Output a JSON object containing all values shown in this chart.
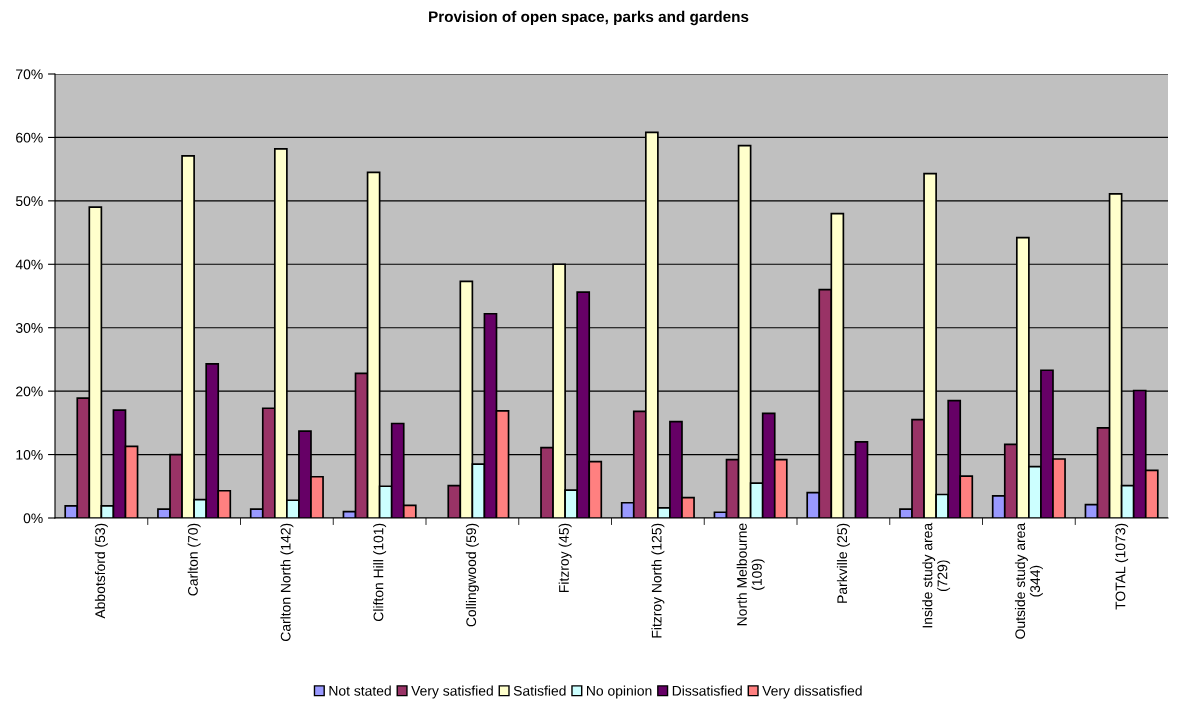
{
  "chart_data": {
    "type": "bar",
    "title": "Provision of open space, parks and gardens",
    "categories": [
      "Abbotsford (53)",
      "Carlton (70)",
      "Carlton North (142)",
      "Clifton Hill (101)",
      "Collingwood (59)",
      "Fitzroy (45)",
      "Fitzroy North (125)",
      "North Melbourne\n(109)",
      "Parkville (25)",
      "Inside study area\n(729)",
      "Outside study area\n(344)",
      "TOTAL (1073)"
    ],
    "series": [
      {
        "name": "Not stated",
        "color": "#9999ff",
        "values": [
          1.9,
          1.4,
          1.4,
          1.0,
          null,
          null,
          2.4,
          0.9,
          4.0,
          1.4,
          3.5,
          2.1
        ]
      },
      {
        "name": "Very satisfied",
        "color": "#993366",
        "values": [
          18.9,
          10.0,
          17.3,
          22.8,
          5.1,
          11.1,
          16.8,
          9.2,
          36.0,
          15.5,
          11.6,
          14.2
        ]
      },
      {
        "name": "Satisfied",
        "color": "#ffffcc",
        "values": [
          49.0,
          57.1,
          58.2,
          54.5,
          37.3,
          40.0,
          60.8,
          58.7,
          48.0,
          54.3,
          44.2,
          51.1
        ]
      },
      {
        "name": "No opinion",
        "color": "#ccffff",
        "values": [
          1.9,
          2.9,
          2.8,
          5.0,
          8.5,
          4.4,
          1.6,
          5.5,
          null,
          3.7,
          8.1,
          5.1
        ]
      },
      {
        "name": "Dissatisfied",
        "color": "#660066",
        "values": [
          17.0,
          24.3,
          13.7,
          14.9,
          32.2,
          35.6,
          15.2,
          16.5,
          12.0,
          18.5,
          23.3,
          20.1
        ]
      },
      {
        "name": "Very dissatisfied",
        "color": "#ff8080",
        "values": [
          11.3,
          4.3,
          6.5,
          2.0,
          16.9,
          8.9,
          3.2,
          9.2,
          null,
          6.6,
          9.3,
          7.5
        ]
      }
    ],
    "ylim": [
      0,
      70
    ],
    "yticks": [
      {
        "value": 0,
        "label": "0%"
      },
      {
        "value": 10,
        "label": "10%"
      },
      {
        "value": 20,
        "label": "20%"
      },
      {
        "value": 30,
        "label": "30%"
      },
      {
        "value": 40,
        "label": "40%"
      },
      {
        "value": 50,
        "label": "50%"
      },
      {
        "value": 60,
        "label": "60%"
      },
      {
        "value": 70,
        "label": "70%"
      }
    ],
    "grid": "y",
    "legend": "bottom"
  }
}
